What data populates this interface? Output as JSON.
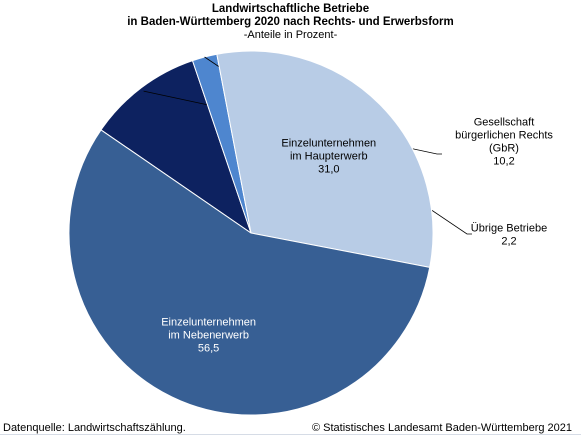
{
  "chart_data": {
    "type": "pie",
    "title_lines": [
      "Landwirtschaftliche Betriebe",
      "in Baden-Württemberg 2020 nach Rechts- und Erwerbsform"
    ],
    "subtitle": "-Anteile in Prozent-",
    "unit": "Prozent",
    "slices": [
      {
        "label_lines": [
          "Gesellschaft",
          "bürgerlichen Rechts",
          "(GbR)"
        ],
        "value": 10.2,
        "value_label": "10,2",
        "color": "#0d2260",
        "label_position": "outside"
      },
      {
        "label_lines": [
          "Übrige Betriebe"
        ],
        "value": 2.2,
        "value_label": "2,2",
        "color": "#4e86cf",
        "label_position": "outside"
      },
      {
        "label_lines": [
          "Einzelunternehmen",
          "im Haupterwerb"
        ],
        "value": 31.0,
        "value_label": "31,0",
        "color": "#b8cce6",
        "label_position": "inside"
      },
      {
        "label_lines": [
          "Einzelunternehmen",
          "im Nebenerwerb"
        ],
        "value": 56.5,
        "value_label": "56,5",
        "color": "#375f94",
        "label_position": "inside"
      }
    ]
  },
  "footer": {
    "source": "Datenquelle: Landwirtschaftszählung.",
    "copyright": "© Statistisches Landesamt Baden-Württemberg 2021"
  }
}
